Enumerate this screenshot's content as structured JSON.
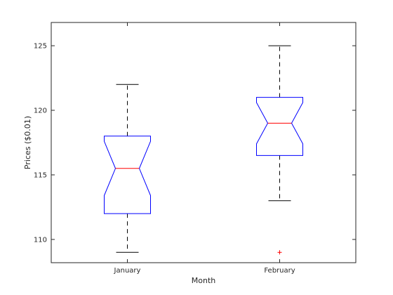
{
  "chart_data": {
    "type": "box",
    "xlabel": "Month",
    "ylabel": "Prices ($0.01)",
    "categories": [
      "January",
      "February"
    ],
    "ylim": [
      108.2,
      126.8
    ],
    "yticks": [
      110,
      115,
      120,
      125
    ],
    "notched": true,
    "boxes": [
      {
        "category": "January",
        "whisker_low": 109,
        "q1": 112,
        "notch_low": 113.4,
        "median": 115.5,
        "notch_high": 117.6,
        "q3": 118,
        "whisker_high": 122,
        "outliers": []
      },
      {
        "category": "February",
        "whisker_low": 113,
        "q1": 116.5,
        "notch_low": 117.4,
        "median": 119,
        "notch_high": 120.6,
        "q3": 121,
        "whisker_high": 125,
        "outliers": [
          109
        ]
      }
    ],
    "colors": {
      "box": "#0000ff",
      "median": "#ff0000",
      "whisker": "#000000",
      "outlier": "#ff0000",
      "axes": "#262626"
    },
    "grid": false
  }
}
